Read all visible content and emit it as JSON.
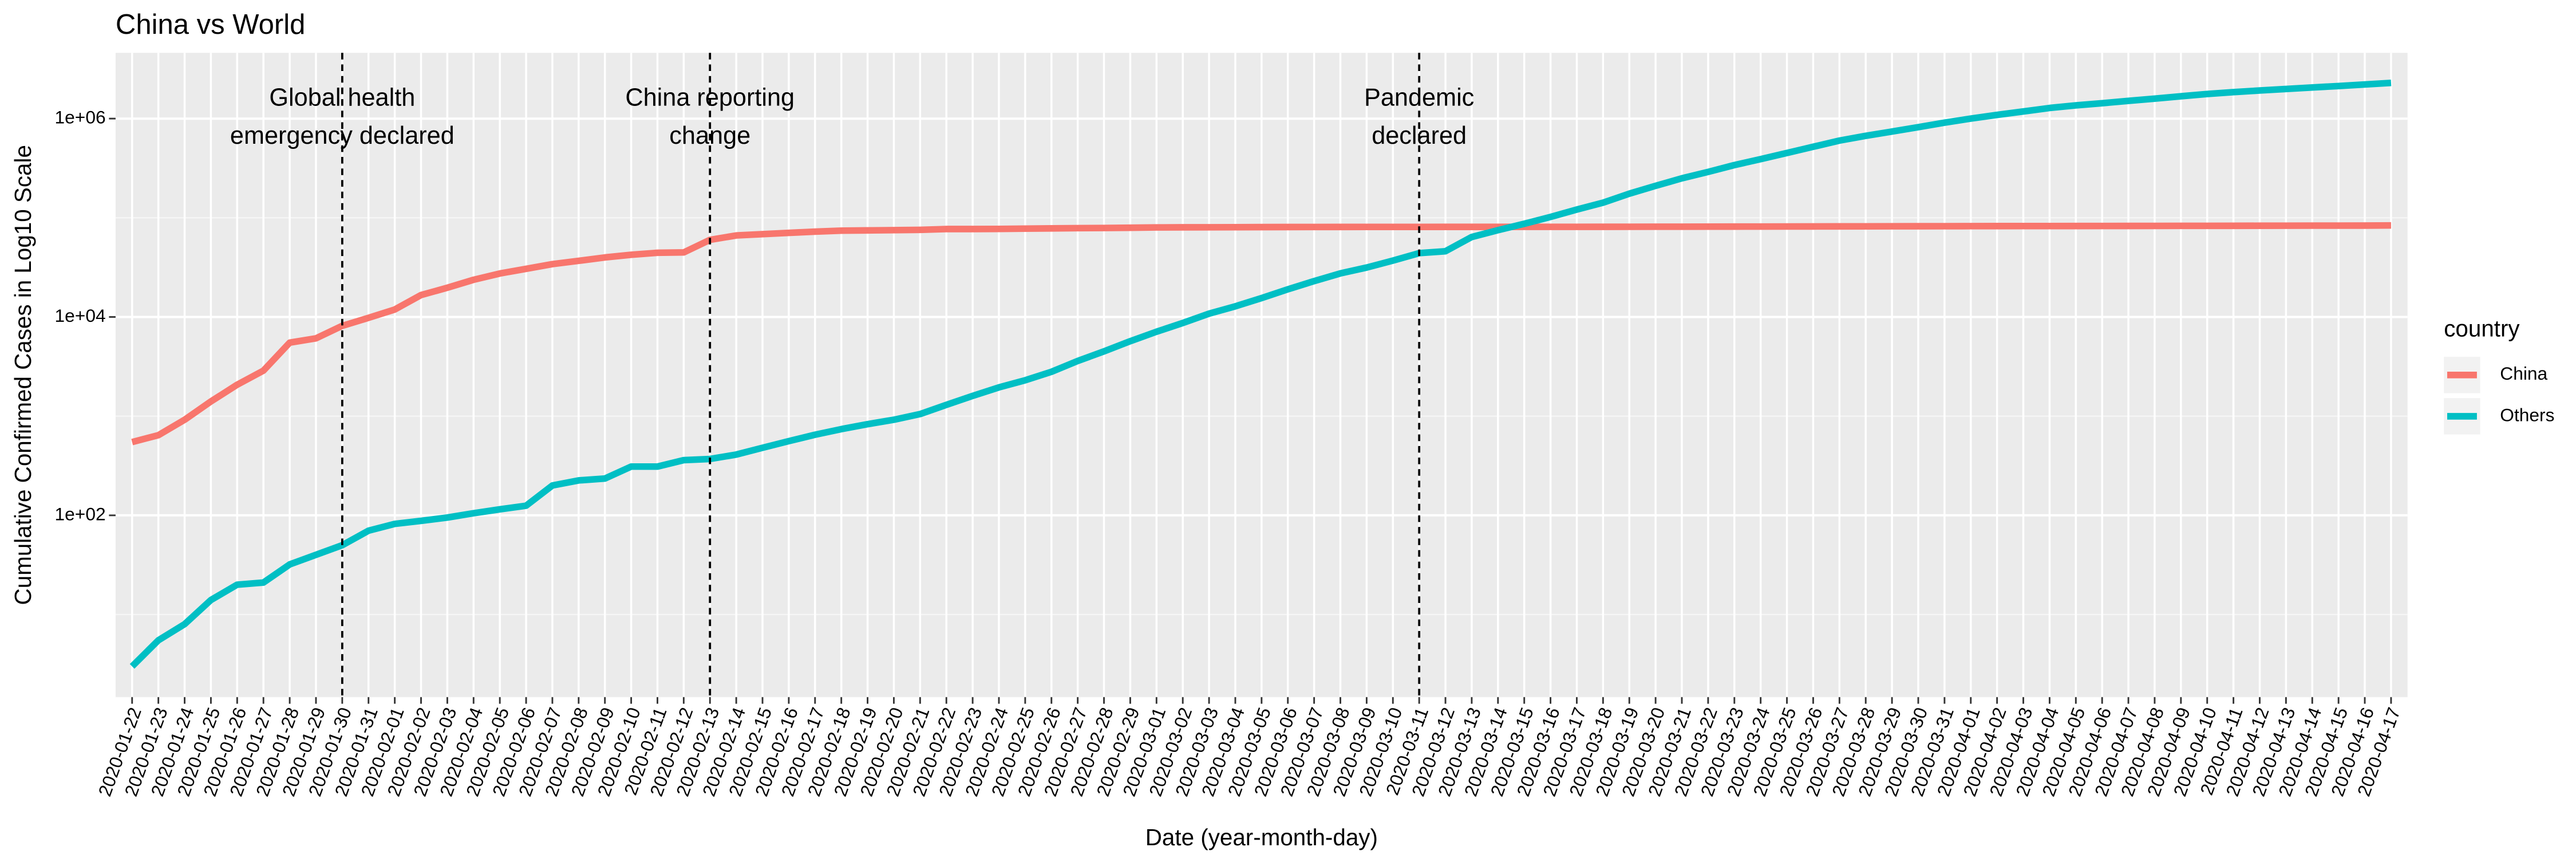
{
  "chart_data": {
    "type": "line",
    "title": "China vs World",
    "x_label": "Date (year-month-day)",
    "y_label": "Cumulative Confirmed Cases in Log10 Scale",
    "y_log": true,
    "grid": true,
    "legend_position": "right",
    "legend_title": "country",
    "x": [
      "2020-01-22",
      "2020-01-23",
      "2020-01-24",
      "2020-01-25",
      "2020-01-26",
      "2020-01-27",
      "2020-01-28",
      "2020-01-29",
      "2020-01-30",
      "2020-01-31",
      "2020-02-01",
      "2020-02-02",
      "2020-02-03",
      "2020-02-04",
      "2020-02-05",
      "2020-02-06",
      "2020-02-07",
      "2020-02-08",
      "2020-02-09",
      "2020-02-10",
      "2020-02-11",
      "2020-02-12",
      "2020-02-13",
      "2020-02-14",
      "2020-02-15",
      "2020-02-16",
      "2020-02-17",
      "2020-02-18",
      "2020-02-19",
      "2020-02-20",
      "2020-02-21",
      "2020-02-22",
      "2020-02-23",
      "2020-02-24",
      "2020-02-25",
      "2020-02-26",
      "2020-02-27",
      "2020-02-28",
      "2020-02-29",
      "2020-03-01",
      "2020-03-02",
      "2020-03-03",
      "2020-03-04",
      "2020-03-05",
      "2020-03-06",
      "2020-03-07",
      "2020-03-08",
      "2020-03-09",
      "2020-03-10",
      "2020-03-11",
      "2020-03-12",
      "2020-03-13",
      "2020-03-14",
      "2020-03-15",
      "2020-03-16",
      "2020-03-17",
      "2020-03-18",
      "2020-03-19",
      "2020-03-20",
      "2020-03-21",
      "2020-03-22",
      "2020-03-23",
      "2020-03-24",
      "2020-03-25",
      "2020-03-26",
      "2020-03-27",
      "2020-03-28",
      "2020-03-29",
      "2020-03-30",
      "2020-03-31",
      "2020-04-01",
      "2020-04-02",
      "2020-04-03",
      "2020-04-04",
      "2020-04-05",
      "2020-04-06",
      "2020-04-07",
      "2020-04-08",
      "2020-04-09",
      "2020-04-10",
      "2020-04-11",
      "2020-04-12",
      "2020-04-13",
      "2020-04-14",
      "2020-04-15",
      "2020-04-16",
      "2020-04-17"
    ],
    "series": [
      {
        "name": "China",
        "color": "#F8766D",
        "values": [
          548,
          643,
          920,
          1406,
          2075,
          2877,
          5509,
          6087,
          8141,
          9802,
          11891,
          16630,
          19716,
          23707,
          27440,
          30587,
          34110,
          36814,
          39829,
          42354,
          44386,
          44759,
          59895,
          66358,
          68413,
          70513,
          72434,
          74211,
          74619,
          75077,
          75550,
          77001,
          77022,
          77241,
          77754,
          78166,
          78600,
          78928,
          79356,
          79932,
          80136,
          80261,
          80386,
          80537,
          80690,
          80770,
          80823,
          80860,
          80887,
          80921,
          80932,
          80945,
          80977,
          81003,
          81033,
          81058,
          81102,
          81156,
          81250,
          81305,
          81435,
          81498,
          81591,
          81661,
          81782,
          81897,
          81999,
          82122,
          82198,
          82279,
          82361,
          82432,
          82511,
          82543,
          82602,
          82665,
          82718,
          82809,
          82883,
          82941,
          83014,
          83134,
          83213,
          83306,
          83356,
          83403,
          83760
        ]
      },
      {
        "name": "Others",
        "color": "#00BFC4",
        "values": [
          3,
          5.5,
          8,
          14,
          20,
          21,
          32,
          40,
          50,
          70,
          82,
          88,
          95,
          105,
          115,
          125,
          200,
          225,
          235,
          310,
          310,
          360,
          370,
          410,
          480,
          560,
          650,
          740,
          830,
          920,
          1050,
          1300,
          1600,
          1950,
          2300,
          2800,
          3600,
          4500,
          5700,
          7100,
          8700,
          10800,
          12800,
          15500,
          19000,
          23000,
          27500,
          31500,
          37000,
          44000,
          46000,
          64000,
          75000,
          87000,
          102000,
          121000,
          142000,
          175000,
          210000,
          250000,
          290000,
          340000,
          390000,
          450000,
          520000,
          600000,
          670000,
          740000,
          820000,
          910000,
          1000000,
          1090000,
          1180000,
          1280000,
          1360000,
          1430000,
          1510000,
          1590000,
          1680000,
          1770000,
          1850000,
          1920000,
          1990000,
          2060000,
          2130000,
          2210000,
          2290000
        ]
      }
    ],
    "ylim": [
      1.47,
      4600000
    ],
    "yticks": [
      {
        "value": 100,
        "label": "1e+02"
      },
      {
        "value": 10000,
        "label": "1e+04"
      },
      {
        "value": 1000000,
        "label": "1e+06"
      }
    ],
    "y_minor_ticks": [
      10,
      1000,
      100000
    ],
    "annotations": [
      {
        "x": "2020-01-30",
        "label_lines": [
          "Global health",
          "emergency declared"
        ]
      },
      {
        "x": "2020-02-13",
        "label_lines": [
          "China reporting",
          "change"
        ]
      },
      {
        "x": "2020-03-11",
        "label_lines": [
          "Pandemic",
          "declared"
        ]
      }
    ]
  }
}
